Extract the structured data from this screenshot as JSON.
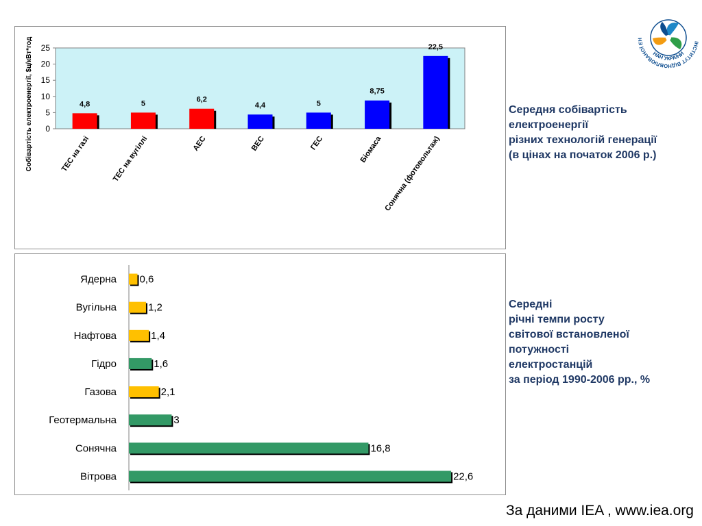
{
  "chart_data": [
    {
      "type": "bar",
      "orientation": "vertical",
      "ylabel": "Собівартість електроенергії, $ц/кВт*год",
      "ylim": [
        0,
        25
      ],
      "yticks": [
        0,
        5,
        10,
        15,
        20,
        25
      ],
      "grid": false,
      "legend": "none",
      "categories": [
        "ТЕС на газі",
        "ТЕС на вугіллі",
        "АЕС",
        "ВЕС",
        "ГЕС",
        "Біомаса",
        "Сонячна (фотовольтаж)"
      ],
      "values": [
        4.8,
        5,
        6.2,
        4.4,
        5,
        8.75,
        22.5
      ],
      "value_labels": [
        "4,8",
        "5",
        "6,2",
        "4,4",
        "5",
        "8,75",
        "22,5"
      ],
      "bar_colors": [
        "#ff0000",
        "#ff0000",
        "#ff0000",
        "#0000ff",
        "#0000ff",
        "#0000ff",
        "#0000ff"
      ],
      "plot_background": "#ccf2f7"
    },
    {
      "type": "bar",
      "orientation": "horizontal",
      "grid": false,
      "legend": "none",
      "xlim": [
        0,
        24
      ],
      "categories": [
        "Ядерна",
        "Вугільна",
        "Нафтова",
        "Гідро",
        "Газова",
        "Геотермальна",
        "Сонячна",
        "Вітрова"
      ],
      "values": [
        0.6,
        1.2,
        1.4,
        1.6,
        2.1,
        3,
        16.8,
        22.6
      ],
      "value_labels": [
        "0,6",
        "1,2",
        "1,4",
        "1,6",
        "2,1",
        "3",
        "16,8",
        "22,6"
      ],
      "bar_colors": [
        "#ffc000",
        "#ffc000",
        "#ffc000",
        "#339966",
        "#ffc000",
        "#339966",
        "#339966",
        "#339966"
      ]
    }
  ],
  "captions": {
    "top": [
      "Середня собівартість",
      "електроенергії",
      "різних технологій генерації",
      "(в цінах на початок 2006 р.)"
    ],
    "bottom": [
      "Середні",
      "річні темпи росту",
      "світової встановленої",
      "потужності",
      "електростанцій",
      "за період 1990-2006 рр., %"
    ]
  },
  "source_note": "За даними IEA , www.iea.org",
  "logo": {
    "ring_text": "ІНСТИТУТ ВІДНОВЛЮВАНОЇ ЕНЕРГЕТИКИ",
    "bottom_text": "НАН УКРАЇНИ",
    "colors": [
      "#1e88c8",
      "#2e9e48",
      "#f39c12",
      "#0d4d8f"
    ]
  }
}
